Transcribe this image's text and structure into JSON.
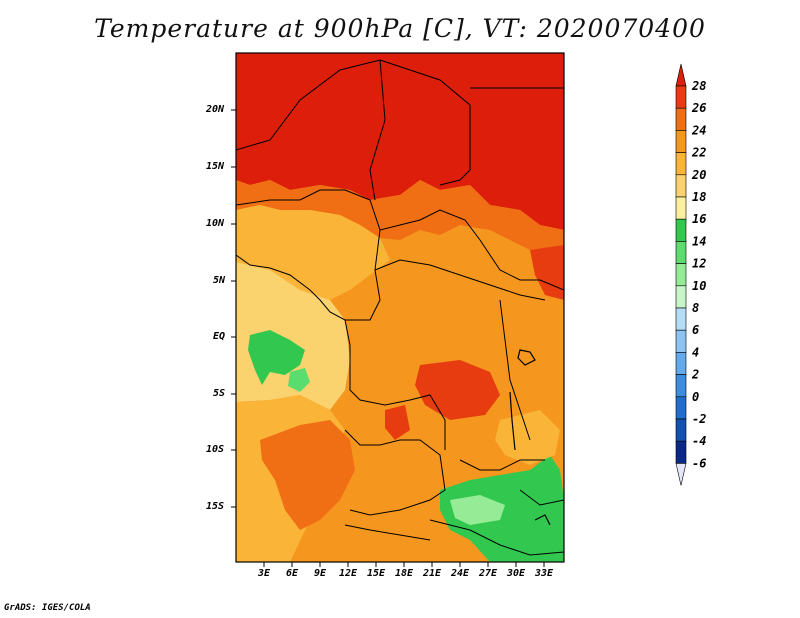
{
  "title": "Temperature at 900hPa [C], VT: 2020070400",
  "credit": "GrADS: IGES/COLA",
  "map": {
    "lat_labels": [
      "20N",
      "15N",
      "10N",
      "5N",
      "EQ",
      "5S",
      "10S",
      "15S"
    ],
    "lon_labels": [
      "3E",
      "6E",
      "9E",
      "12E",
      "15E",
      "18E",
      "21E",
      "24E",
      "27E",
      "30E",
      "33E"
    ],
    "field": "Temperature at 900hPa",
    "units": "C"
  },
  "colorbar": {
    "labels": [
      "28",
      "26",
      "24",
      "22",
      "20",
      "18",
      "16",
      "14",
      "12",
      "10",
      "8",
      "6",
      "4",
      "2",
      "0",
      "-2",
      "-4",
      "-6"
    ],
    "colors": [
      "#dc1e0a",
      "#e63c0f",
      "#f06e14",
      "#f5961e",
      "#fab437",
      "#fad26e",
      "#faf0a0",
      "#32c850",
      "#5adc6e",
      "#96eb96",
      "#c8f5c8",
      "#b4dcf5",
      "#8cc3f0",
      "#64aaeb",
      "#3c8ce1",
      "#1e6ed2",
      "#1450b4",
      "#0a288c",
      "#050a5a",
      "#e6e6fa"
    ]
  }
}
